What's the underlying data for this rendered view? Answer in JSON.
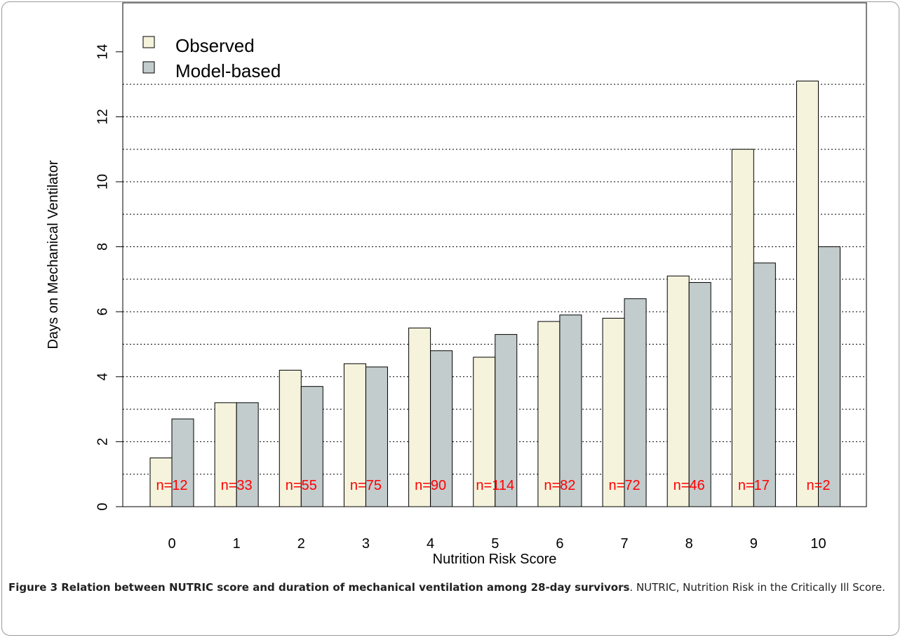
{
  "chart_data": {
    "type": "bar",
    "xlabel": "Nutrition Risk Score",
    "ylabel": "Days on Mechanical Ventilator",
    "categories": [
      "0",
      "1",
      "2",
      "3",
      "4",
      "5",
      "6",
      "7",
      "8",
      "9",
      "10"
    ],
    "series": [
      {
        "name": "Observed",
        "values": [
          1.5,
          3.2,
          4.2,
          4.4,
          5.5,
          4.6,
          5.7,
          5.8,
          7.1,
          11.0,
          13.1
        ],
        "color": "#f5f3dc"
      },
      {
        "name": "Model-based",
        "values": [
          2.7,
          3.2,
          3.7,
          4.3,
          4.8,
          5.3,
          5.9,
          6.4,
          6.9,
          7.5,
          8.0
        ],
        "color": "#c3cccd"
      }
    ],
    "annotations": [
      "n=12",
      "n=33",
      "n=55",
      "n=75",
      "n=90",
      "n=114",
      "n=82",
      "n=72",
      "n=46",
      "n=17",
      "n=2"
    ],
    "annotation_color": "#ff0000",
    "ylim": [
      0,
      14
    ],
    "yticks": [
      "0",
      "2",
      "4",
      "6",
      "8",
      "10",
      "12",
      "14"
    ],
    "grid": "dotted horizontal lines at every 1 unit from 1 to 13",
    "legend_position": "top-left"
  },
  "caption": {
    "bold": "Figure 3 Relation between NUTRIC score and duration of mechanical ventilation among 28-day survivors",
    "rest": ". NUTRIC, Nutrition Risk in the Critically Ill Score."
  }
}
